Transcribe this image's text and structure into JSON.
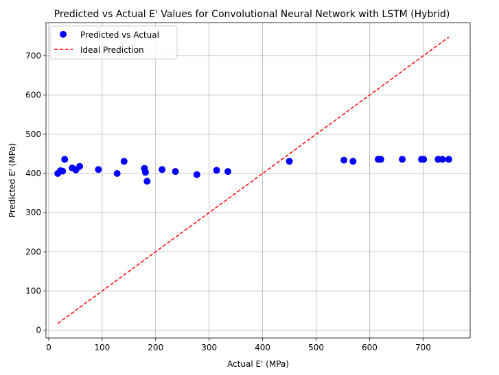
{
  "chart_data": {
    "type": "scatter",
    "title": "Predicted vs Actual E' Values for Convolutional Neural Network with LSTM (Hybrid)",
    "xlabel": "Actual E' (MPa)",
    "ylabel": "Predicted E' (MPa)",
    "xlim": [
      -5,
      788
    ],
    "ylim": [
      -20,
      785
    ],
    "xticks": [
      0,
      100,
      200,
      300,
      400,
      500,
      600,
      700
    ],
    "yticks": [
      0,
      100,
      200,
      300,
      400,
      500,
      600,
      700
    ],
    "grid": true,
    "legend_position": "top-left",
    "series": [
      {
        "name": "Predicted vs Actual",
        "kind": "scatter",
        "color": "#0000ff",
        "points": [
          [
            17,
            400
          ],
          [
            22,
            407
          ],
          [
            26,
            406
          ],
          [
            30,
            436
          ],
          [
            44,
            414
          ],
          [
            51,
            409
          ],
          [
            58,
            418
          ],
          [
            93,
            410
          ],
          [
            128,
            400
          ],
          [
            141,
            431
          ],
          [
            179,
            413
          ],
          [
            181,
            403
          ],
          [
            184,
            380
          ],
          [
            212,
            410
          ],
          [
            237,
            405
          ],
          [
            277,
            397
          ],
          [
            314,
            408
          ],
          [
            335,
            405
          ],
          [
            450,
            431
          ],
          [
            552,
            434
          ],
          [
            569,
            431
          ],
          [
            616,
            436
          ],
          [
            621,
            436
          ],
          [
            661,
            436
          ],
          [
            697,
            436
          ],
          [
            701,
            436
          ],
          [
            728,
            436
          ],
          [
            736,
            436
          ],
          [
            748,
            436
          ]
        ]
      },
      {
        "name": "Ideal Prediction",
        "kind": "line",
        "style": "dashed",
        "color": "#ff0000",
        "points": [
          [
            17,
            17
          ],
          [
            748,
            748
          ]
        ]
      }
    ]
  }
}
